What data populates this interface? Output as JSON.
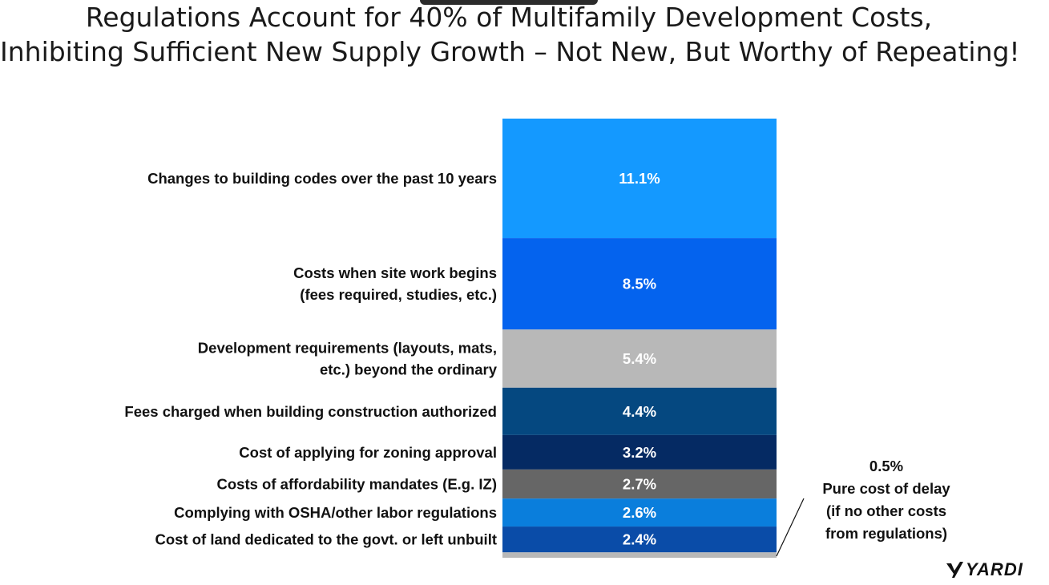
{
  "header": {
    "title_line1": "Regulations Account for 40% of Multifamily Development Costs,",
    "title_line2": "Inhibiting Sufficient New Supply Growth – Not New, But Worthy of Repeating!"
  },
  "chart_data": {
    "type": "bar",
    "subtype": "single stacked bar",
    "title": "Regulations Account for 40% of Multifamily Development Costs, Inhibiting Sufficient New Supply Growth – Not New, But Worthy of Repeating!",
    "unit": "%",
    "segments": [
      {
        "label": [
          "Changes to building codes over the past 10 years"
        ],
        "value": 11.1,
        "display": "11.1%",
        "color": "#1499FF"
      },
      {
        "label": [
          "Costs when site work begins",
          "(fees required, studies, etc.)"
        ],
        "value": 8.5,
        "display": "8.5%",
        "color": "#0463EE"
      },
      {
        "label": [
          "Development requirements (layouts, mats,",
          "etc.) beyond the ordinary"
        ],
        "value": 5.4,
        "display": "5.4%",
        "color": "#B8B8B8"
      },
      {
        "label": [
          "Fees charged when building construction authorized"
        ],
        "value": 4.4,
        "display": "4.4%",
        "color": "#054880"
      },
      {
        "label": [
          "Cost of applying for zoning approval"
        ],
        "value": 3.2,
        "display": "3.2%",
        "color": "#052A63"
      },
      {
        "label": [
          "Costs of affordability mandates (E.g. IZ)"
        ],
        "value": 2.7,
        "display": "2.7%",
        "color": "#666666"
      },
      {
        "label": [
          "Complying with OSHA/other labor regulations"
        ],
        "value": 2.6,
        "display": "2.6%",
        "color": "#0A7EDC"
      },
      {
        "label": [
          "Cost of land dedicated to the govt. or left unbuilt"
        ],
        "value": 2.4,
        "display": "2.4%",
        "color": "#0A4CA8"
      },
      {
        "label": [],
        "value": 0.5,
        "display": "",
        "color": "#B8B8B8"
      }
    ],
    "callout": {
      "value": "0.5%",
      "lines": [
        "Pure cost of delay",
        "(if no other costs",
        "from regulations)"
      ]
    }
  },
  "brand": {
    "name": "YARDI"
  }
}
